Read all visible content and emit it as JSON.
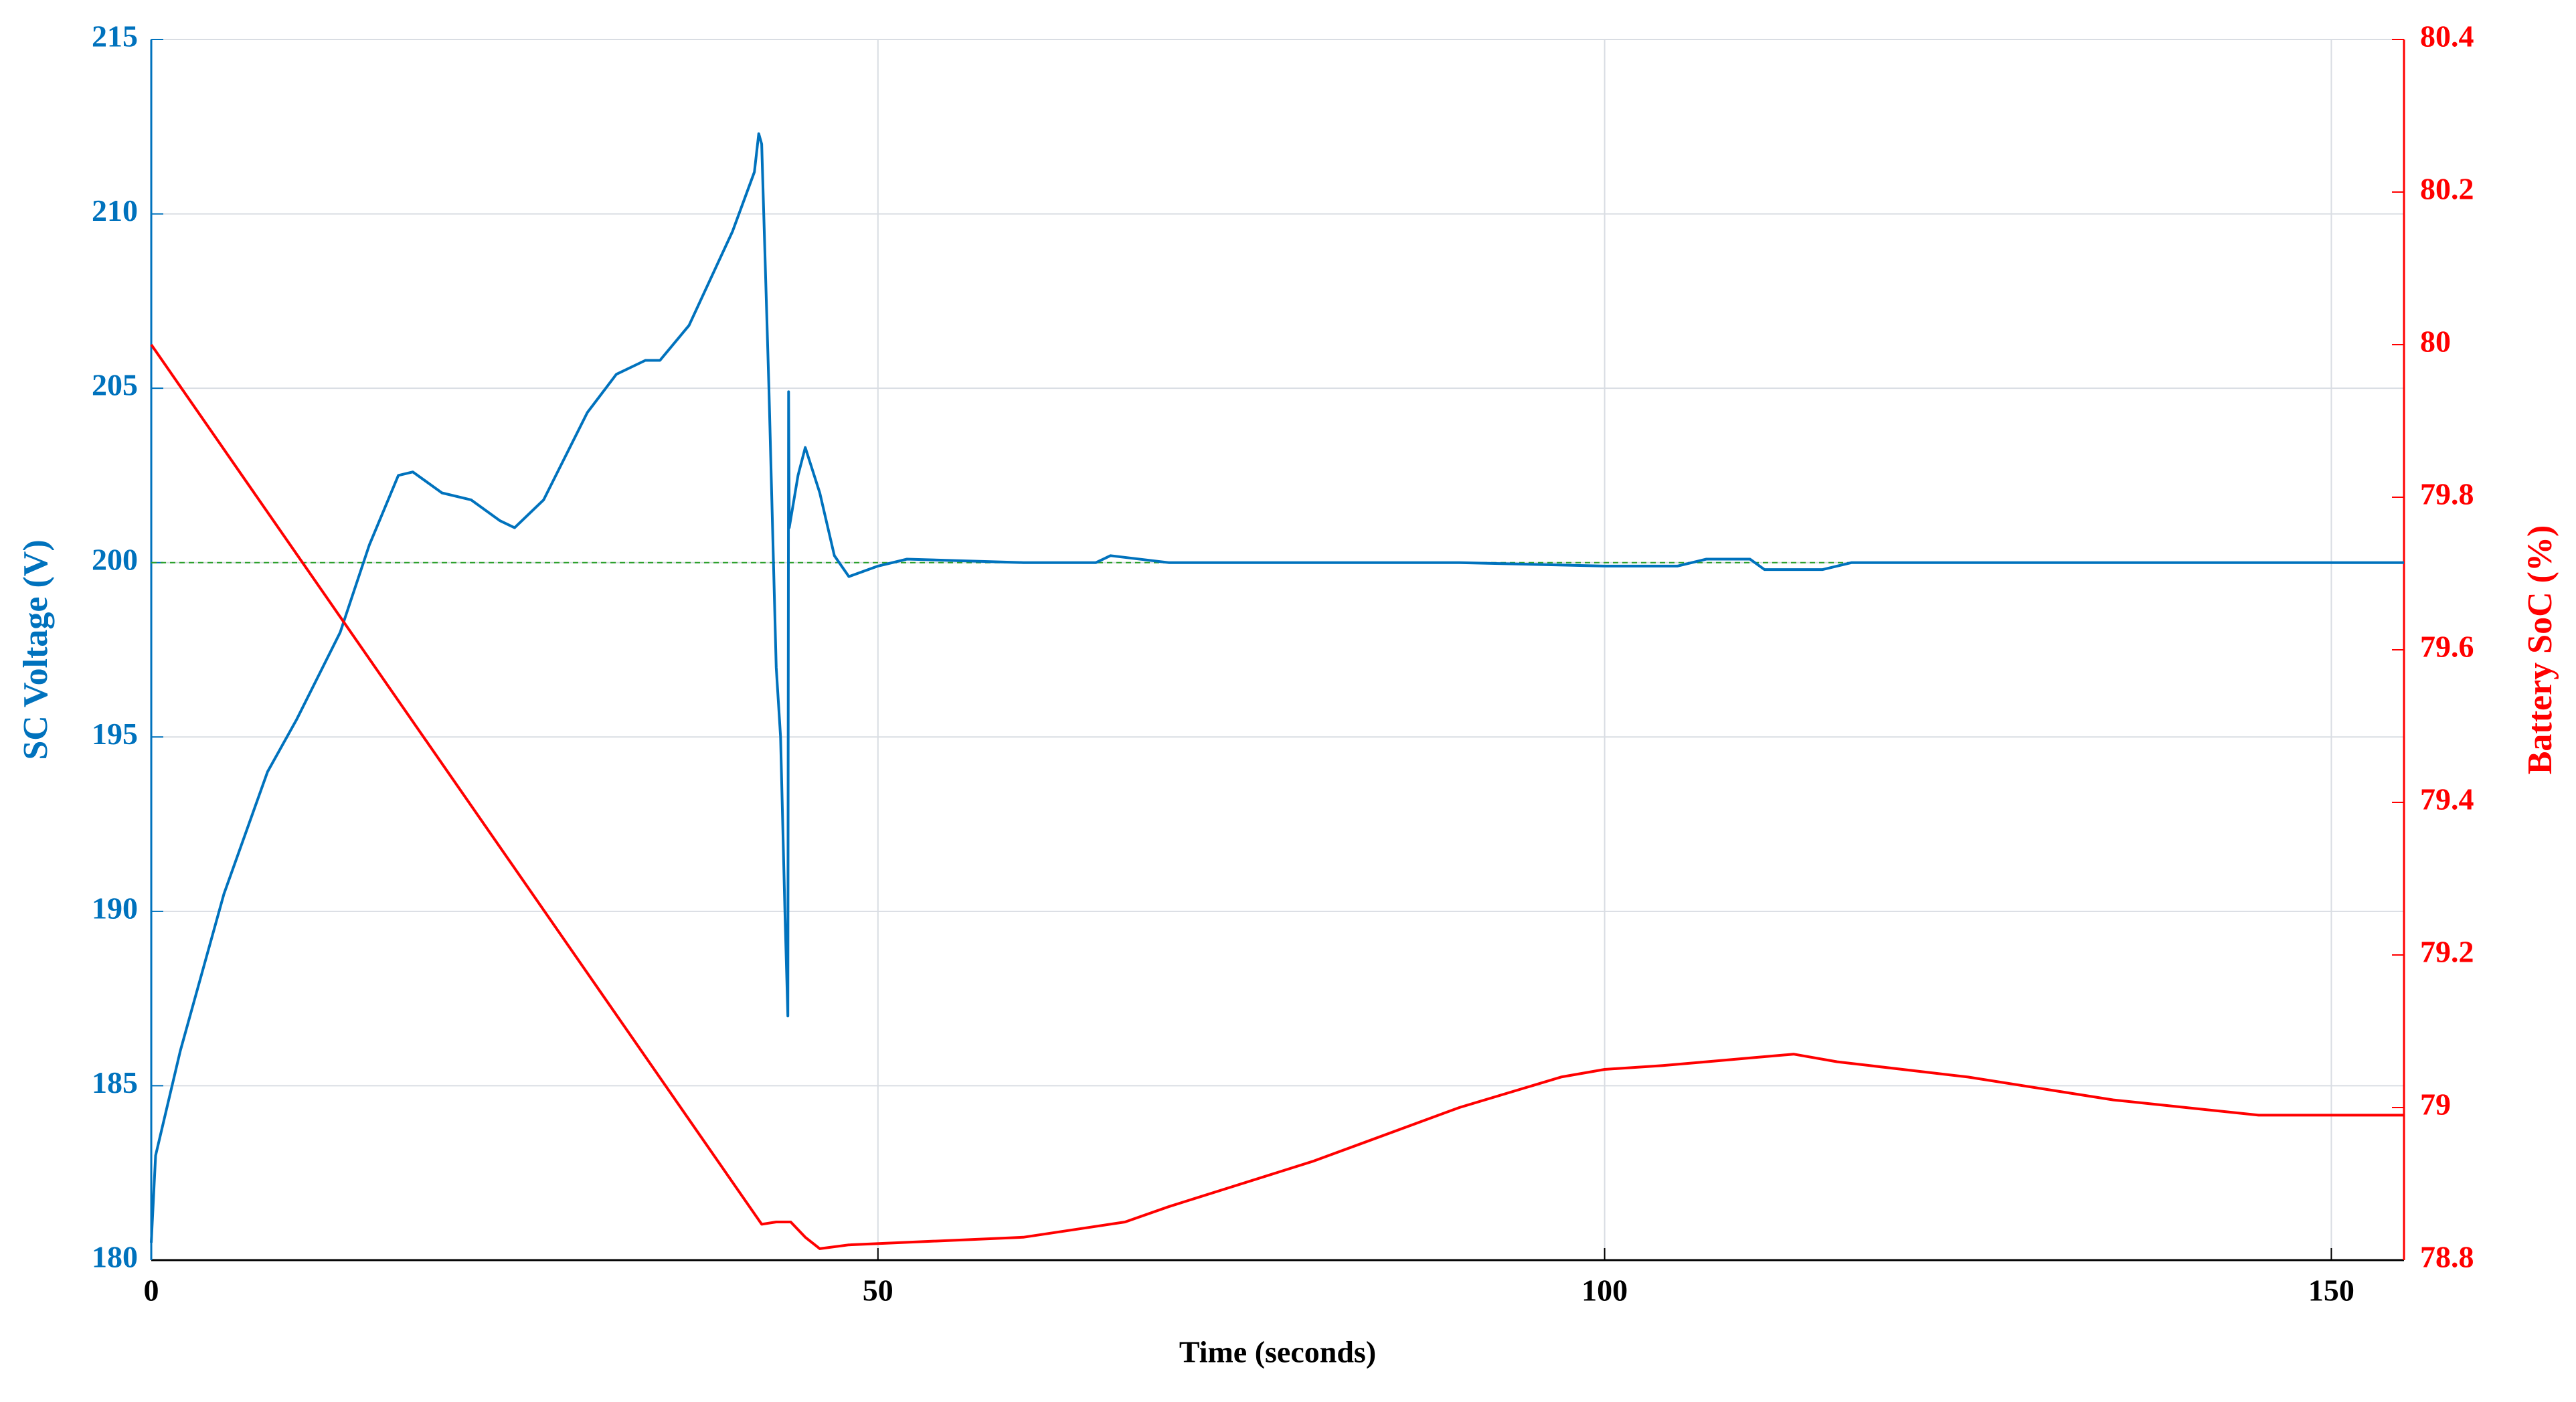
{
  "chart_data": {
    "type": "line",
    "xlabel": "Time (seconds)",
    "ylabel": "SC Voltage (V)",
    "y2label": "Battery SoC (%)",
    "xlim": [
      0,
      155
    ],
    "xticks": [
      0,
      50,
      100,
      150
    ],
    "ylim": [
      180,
      215
    ],
    "yticks": [
      180,
      185,
      190,
      195,
      200,
      205,
      210,
      215
    ],
    "y2lim": [
      78.8,
      80.4
    ],
    "y2ticks": [
      78.8,
      79,
      79.2,
      79.4,
      79.6,
      79.8,
      80,
      80.2,
      80.4
    ],
    "grid": true,
    "reference_line": {
      "value": 200,
      "color": "#2ca02c",
      "dashed": true
    },
    "series": [
      {
        "color": "#0072bd",
        "x": [
          0,
          0.3,
          2,
          5,
          8,
          10,
          13,
          15,
          17,
          18,
          20,
          22,
          24,
          25,
          27,
          30,
          32,
          34,
          35,
          37,
          40,
          41.5,
          41.8,
          42,
          42.5,
          43,
          43.3,
          43.6,
          43.8,
          43.85,
          43.9,
          44.5,
          45,
          46,
          47,
          48,
          50,
          52,
          60,
          65,
          66,
          70,
          80,
          90,
          100,
          105,
          107,
          110,
          111,
          115,
          117,
          130,
          140,
          155
        ],
        "values": [
          180.5,
          183,
          186,
          190.5,
          194,
          195.5,
          198,
          200.5,
          202.5,
          202.6,
          202,
          201.8,
          201.2,
          201,
          201.8,
          204.3,
          205.4,
          205.8,
          205.8,
          206.8,
          209.5,
          211.2,
          212.3,
          212,
          205,
          197,
          195,
          190,
          187,
          204.9,
          201,
          202.5,
          203.3,
          202,
          200.2,
          199.6,
          199.9,
          200.1,
          200,
          200,
          200.2,
          200,
          200,
          200,
          199.9,
          199.9,
          200.1,
          200.1,
          199.8,
          199.8,
          200,
          200,
          200,
          200
        ]
      },
      {
        "color": "#ff0000",
        "axis": "y2",
        "x": [
          0,
          42,
          43,
          44,
          45,
          46,
          48,
          60,
          67,
          70,
          80,
          90,
          97,
          100,
          104,
          107,
          110,
          113,
          116,
          125,
          135,
          145,
          155
        ],
        "values": [
          80,
          78.847,
          78.85,
          78.85,
          78.83,
          78.815,
          78.82,
          78.83,
          78.85,
          78.87,
          78.93,
          79.0,
          79.04,
          79.05,
          79.055,
          79.06,
          79.065,
          79.07,
          79.06,
          79.04,
          79.01,
          78.99,
          78.99
        ]
      }
    ]
  }
}
